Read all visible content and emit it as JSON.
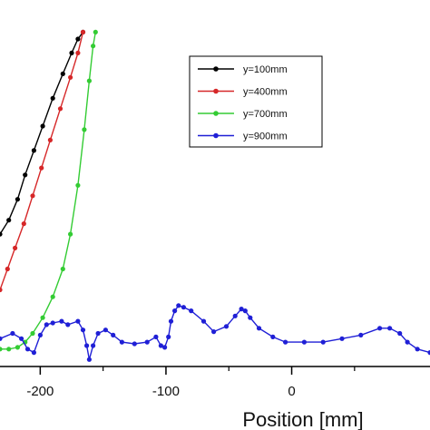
{
  "chart_data": {
    "type": "line",
    "xlabel": "Position [mm]",
    "ylabel": "",
    "title": "",
    "xlim": [
      -232,
      110
    ],
    "ylim": [
      0,
      100
    ],
    "y_scale": "unlabeled (relative 0-100)",
    "x_ticks": [
      -200,
      -100,
      0
    ],
    "x_tick_labels": [
      "-200",
      "-100",
      "0"
    ],
    "grid": false,
    "legend_position": "top-right",
    "series": [
      {
        "name": "y=100mm",
        "color": "#000000",
        "points": [
          [
            -232,
            38
          ],
          [
            -225,
            42
          ],
          [
            -218,
            48
          ],
          [
            -212,
            55
          ],
          [
            -205,
            62
          ],
          [
            -198,
            69
          ],
          [
            -190,
            77
          ],
          [
            -182,
            84
          ],
          [
            -175,
            90
          ],
          [
            -170,
            94
          ],
          [
            -166,
            96
          ]
        ]
      },
      {
        "name": "y=400mm",
        "color": "#d62728",
        "points": [
          [
            -232,
            22
          ],
          [
            -226,
            28
          ],
          [
            -220,
            34
          ],
          [
            -213,
            41
          ],
          [
            -206,
            49
          ],
          [
            -199,
            57
          ],
          [
            -192,
            65
          ],
          [
            -184,
            74
          ],
          [
            -176,
            83
          ],
          [
            -170,
            90
          ],
          [
            -166,
            96
          ]
        ]
      },
      {
        "name": "y=700mm",
        "color": "#33cc33",
        "points": [
          [
            -232,
            5
          ],
          [
            -225,
            5
          ],
          [
            -218,
            5.5
          ],
          [
            -212,
            7
          ],
          [
            -206,
            9.5
          ],
          [
            -198,
            14
          ],
          [
            -190,
            20
          ],
          [
            -182,
            28
          ],
          [
            -176,
            38
          ],
          [
            -170,
            52
          ],
          [
            -165,
            68
          ],
          [
            -161,
            82
          ],
          [
            -158,
            92
          ],
          [
            -156,
            96
          ]
        ]
      },
      {
        "name": "y=900mm",
        "color": "#1f1fd6",
        "points": [
          [
            -232,
            8
          ],
          [
            -222,
            9.5
          ],
          [
            -215,
            8
          ],
          [
            -210,
            5
          ],
          [
            -205,
            4
          ],
          [
            -200,
            9
          ],
          [
            -195,
            12
          ],
          [
            -190,
            12.5
          ],
          [
            -183,
            13
          ],
          [
            -178,
            12
          ],
          [
            -170,
            13
          ],
          [
            -166,
            10.5
          ],
          [
            -163,
            6
          ],
          [
            -161,
            2
          ],
          [
            -158,
            6
          ],
          [
            -154,
            9.5
          ],
          [
            -148,
            10.5
          ],
          [
            -142,
            9
          ],
          [
            -135,
            7
          ],
          [
            -125,
            6.5
          ],
          [
            -115,
            7
          ],
          [
            -108,
            8.5
          ],
          [
            -104,
            6
          ],
          [
            -101,
            5.5
          ],
          [
            -98,
            8.5
          ],
          [
            -96,
            13
          ],
          [
            -93,
            16
          ],
          [
            -90,
            17.5
          ],
          [
            -86,
            17
          ],
          [
            -80,
            16
          ],
          [
            -70,
            13
          ],
          [
            -62,
            10
          ],
          [
            -52,
            11.5
          ],
          [
            -45,
            14.5
          ],
          [
            -40,
            16.5
          ],
          [
            -37,
            16
          ],
          [
            -33,
            14
          ],
          [
            -26,
            11
          ],
          [
            -15,
            8.5
          ],
          [
            -5,
            7
          ],
          [
            10,
            7
          ],
          [
            25,
            7
          ],
          [
            40,
            8
          ],
          [
            55,
            9
          ],
          [
            70,
            11
          ],
          [
            78,
            11
          ],
          [
            86,
            9.5
          ],
          [
            92,
            7
          ],
          [
            100,
            5
          ],
          [
            110,
            4
          ]
        ]
      }
    ]
  }
}
